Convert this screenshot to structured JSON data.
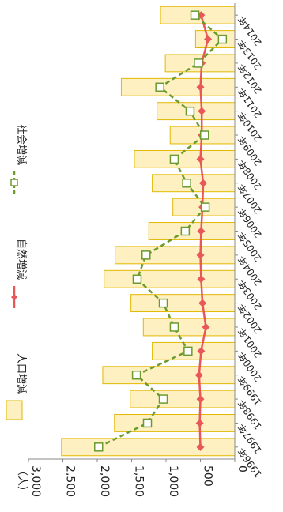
{
  "chart_data": {
    "type": "bar",
    "orientation": "rotated-90-clockwise",
    "categories": [
      "1996年",
      "1997年",
      "1998年",
      "1999年",
      "2000年",
      "2001年",
      "2002年",
      "2003年",
      "2004年",
      "2005年",
      "2006年",
      "2007年",
      "2008年",
      "2009年",
      "2010年",
      "2011年",
      "2012年",
      "2013年",
      "2014年"
    ],
    "series": [
      {
        "name": "人口増減",
        "kind": "bar",
        "color": "#FFF0C2",
        "stroke": "#E2B800",
        "values": [
          2520,
          1750,
          1520,
          1920,
          1200,
          1330,
          1510,
          1900,
          1740,
          1250,
          900,
          1200,
          1460,
          940,
          1130,
          1650,
          1010,
          570,
          1080
        ]
      },
      {
        "name": "自然増減",
        "kind": "line",
        "color": "#E85858",
        "values": [
          500,
          510,
          500,
          520,
          490,
          420,
          470,
          490,
          500,
          490,
          470,
          460,
          500,
          480,
          480,
          500,
          480,
          390,
          490
        ]
      },
      {
        "name": "社会増減",
        "kind": "line-dashed",
        "color": "#6B9B2E",
        "values": [
          1980,
          1270,
          1040,
          1430,
          680,
          880,
          1040,
          1420,
          1290,
          720,
          430,
          700,
          880,
          440,
          650,
          1090,
          530,
          180,
          580
        ]
      }
    ],
    "y_unit": "（人）",
    "y_ticks": [
      "0",
      "500",
      "1,000",
      "1,500",
      "2,000",
      "2,500",
      "3,000"
    ],
    "ylim": [
      0,
      3000
    ],
    "grid": false,
    "legend_position": "top"
  }
}
